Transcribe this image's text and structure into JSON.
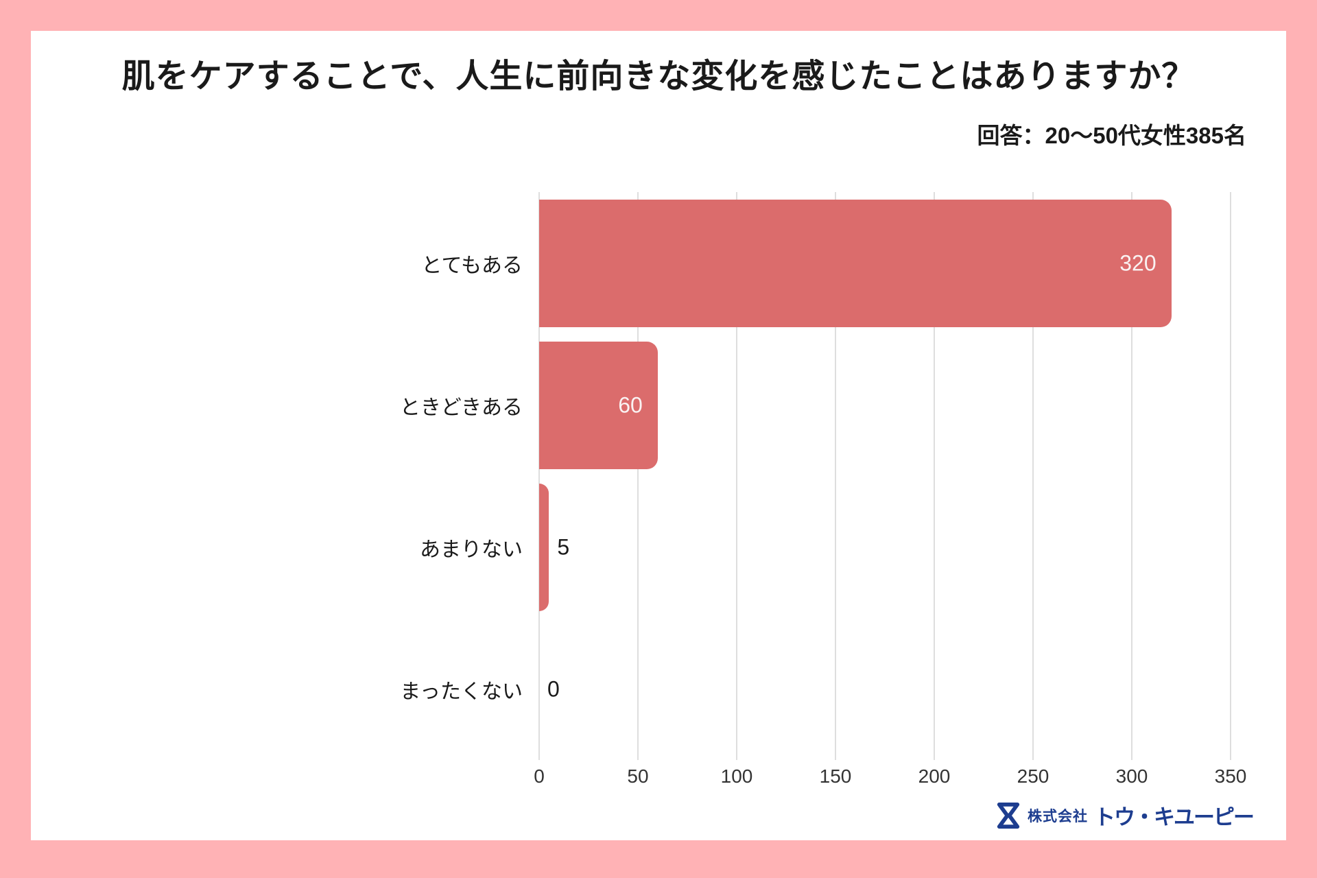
{
  "page": {
    "background_color": "#FFB2B5",
    "card_color": "#FFFFFF"
  },
  "header": {
    "title": "肌をケアすることで、人生に前向きな変化を感じたことはありますか？",
    "subtitle": "回答：20〜50代女性385名"
  },
  "chart_data": {
    "type": "bar",
    "orientation": "horizontal",
    "title": "肌をケアすることで、人生に前向きな変化を感じたことはありますか？",
    "subtitle": "回答：20〜50代女性385名",
    "categories": [
      "とてもある",
      "ときどきある",
      "あまりない",
      "まったくない"
    ],
    "values": [
      320,
      60,
      5,
      0
    ],
    "x_ticks": [
      0,
      50,
      100,
      150,
      200,
      250,
      300,
      350
    ],
    "xlim": [
      0,
      350
    ],
    "grid": true,
    "legend": false,
    "bar_color": "#DB6C6C",
    "grid_color": "#DEDEDE",
    "value_label_inside_color": "#FAF2F2",
    "value_label_outside_color": "#1A1A1A"
  },
  "footer": {
    "company_prefix": "株式会社",
    "company_name": "トウ・キユーピー",
    "logo_color": "#1D3D8F",
    "logo_icon": "hourglass-icon"
  }
}
